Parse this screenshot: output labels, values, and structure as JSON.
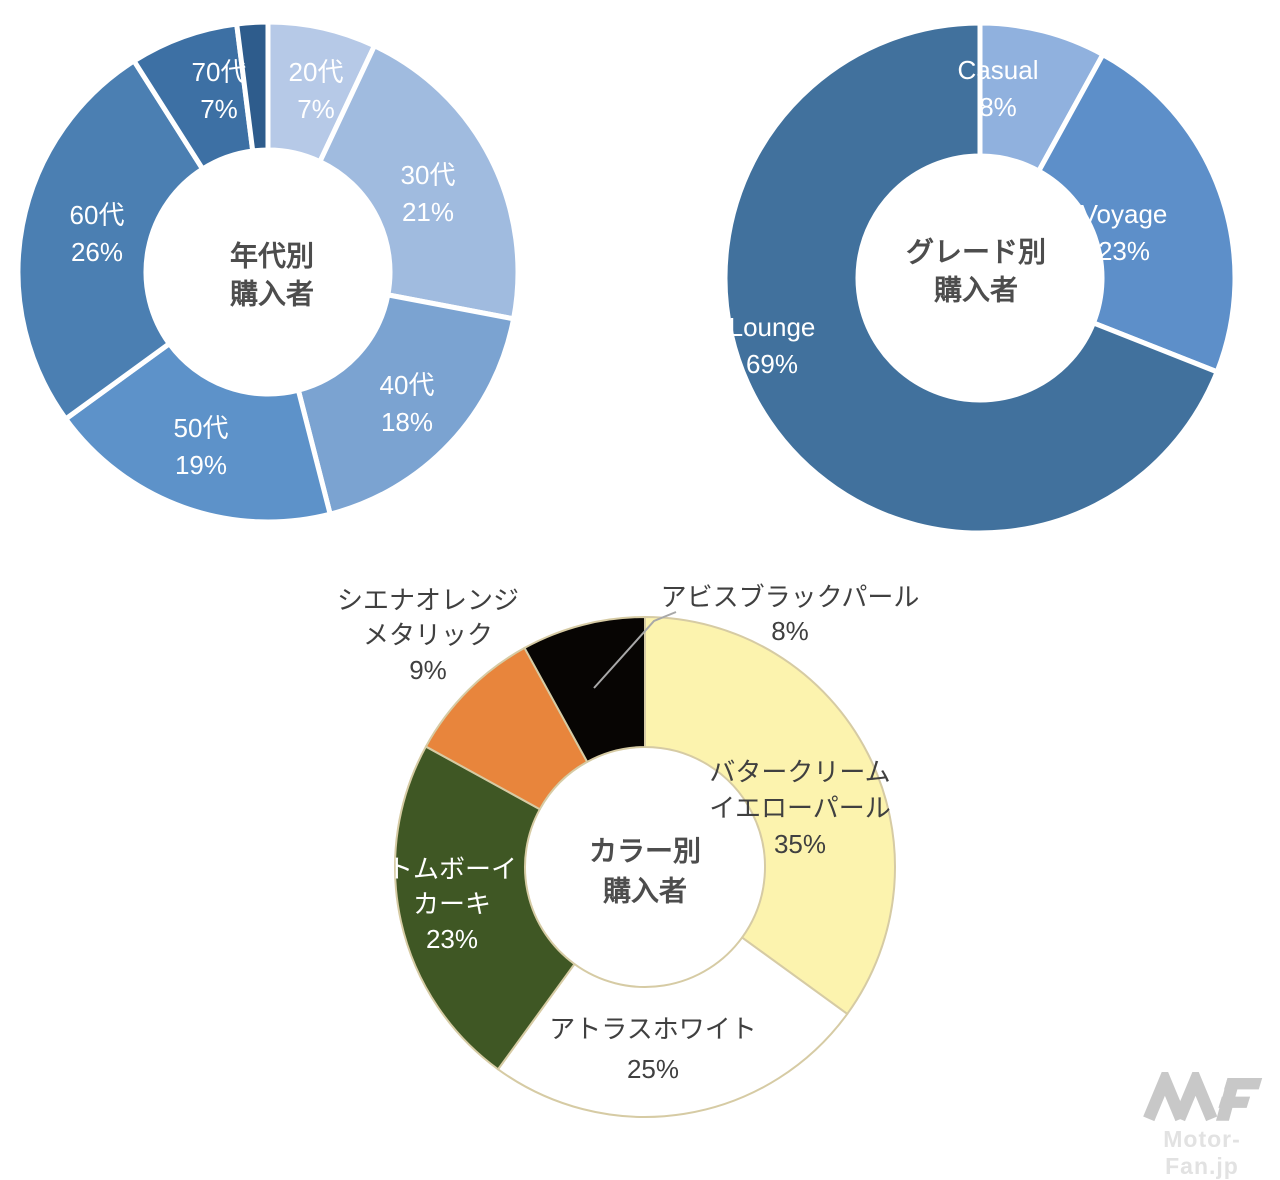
{
  "page": {
    "background": "#ffffff"
  },
  "colors": {
    "title_text": "#4d4d4d",
    "label_light": "#ffffff",
    "label_dark": "#404040",
    "chart3_outline": "#d6cba4",
    "top_chart_gap": "#ffffff",
    "leader_line": "#a8a8a8",
    "watermark_logo": "#c8c8c8",
    "watermark_text": "#e2e2e2"
  },
  "watermark": {
    "text": "Motor-Fan.jp"
  },
  "chart_data": [
    {
      "id": "age",
      "type": "donut",
      "title": "年代別購入者",
      "title_lines": [
        "年代別",
        "購入者"
      ],
      "unit": "%",
      "start_angle_deg": 0,
      "direction": "clockwise",
      "slices": [
        {
          "label": "20代",
          "value": 7,
          "color": "#b6c9e7",
          "text_color": "#ffffff"
        },
        {
          "label": "30代",
          "value": 21,
          "color": "#a0bbdf",
          "text_color": "#ffffff"
        },
        {
          "label": "40代",
          "value": 18,
          "color": "#7ba3d1",
          "text_color": "#ffffff"
        },
        {
          "label": "50代",
          "value": 19,
          "color": "#5d92c9",
          "text_color": "#ffffff"
        },
        {
          "label": "60代",
          "value": 26,
          "color": "#4b7fb2",
          "text_color": "#ffffff"
        },
        {
          "label": "70代",
          "value": 7,
          "color": "#3d70a4",
          "text_color": "#ffffff"
        },
        {
          "label": "",
          "value": 2,
          "color": "#2e5c8c",
          "text_color": "#ffffff",
          "unlabeled": true
        }
      ]
    },
    {
      "id": "grade",
      "type": "donut",
      "title": "グレード別購入者",
      "title_lines": [
        "グレード別",
        "購入者"
      ],
      "unit": "%",
      "start_angle_deg": 0,
      "direction": "clockwise",
      "slices": [
        {
          "label": "Casual",
          "value": 8,
          "color": "#90b1de",
          "text_color": "#ffffff"
        },
        {
          "label": "Voyage",
          "value": 23,
          "color": "#5d8fc9",
          "text_color": "#ffffff"
        },
        {
          "label": "Lounge",
          "value": 69,
          "color": "#41719d",
          "text_color": "#ffffff"
        }
      ]
    },
    {
      "id": "color",
      "type": "donut",
      "title": "カラー別購入者",
      "title_lines": [
        "カラー別",
        "購入者"
      ],
      "unit": "%",
      "start_angle_deg": 0,
      "direction": "clockwise",
      "slices": [
        {
          "label": "バタークリームイエローパール",
          "label_lines": [
            "バタークリーム",
            "イエローパール"
          ],
          "value": 35,
          "color": "#fcf3ae",
          "text_color": "#404040"
        },
        {
          "label": "アトラスホワイト",
          "label_lines": [
            "アトラスホワイト"
          ],
          "value": 25,
          "color": "#ffffff",
          "text_color": "#404040"
        },
        {
          "label": "トムボーイカーキ",
          "label_lines": [
            "トムボーイ",
            "カーキ"
          ],
          "value": 23,
          "color": "#3f5724",
          "text_color": "#ffffff"
        },
        {
          "label": "シエナオレンジメタリック",
          "label_lines": [
            "シエナオレンジ",
            "メタリック"
          ],
          "value": 9,
          "color": "#e8853c",
          "text_color": "#404040",
          "label_outside": true
        },
        {
          "label": "アビスブラックパール",
          "label_lines": [
            "アビスブラックパール"
          ],
          "value": 8,
          "color": "#070503",
          "text_color": "#404040",
          "label_outside": true,
          "leader": true
        }
      ]
    }
  ]
}
